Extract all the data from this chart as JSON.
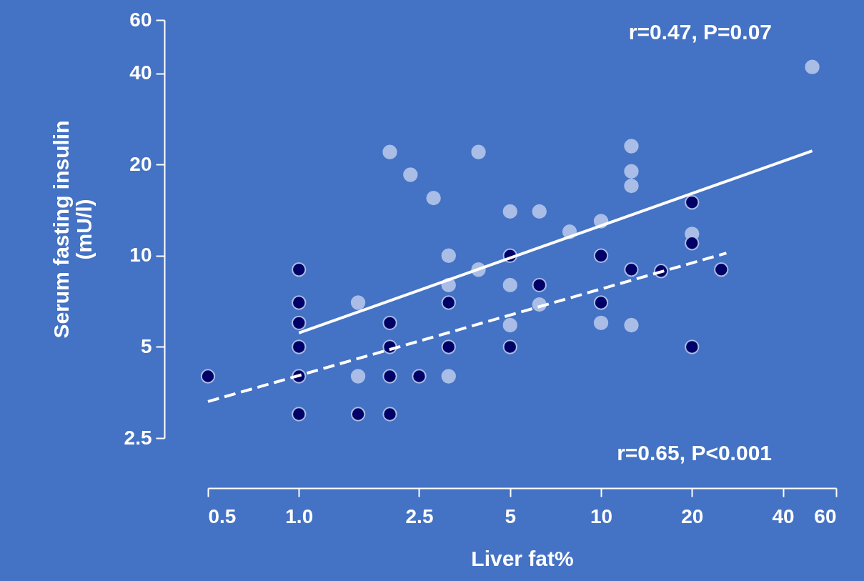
{
  "chart_data": {
    "type": "scatter",
    "xlabel": "Liver fat%",
    "ylabel": "Serum fasting insulin\n(mU/l)",
    "log": "xy",
    "grid": false,
    "xlim": [
      0.5,
      60
    ],
    "xticks": [
      0.5,
      {
        "value": 1,
        "label": "1.0"
      },
      2.5,
      5,
      10,
      20,
      40,
      60
    ],
    "ylim": [
      2.5,
      60
    ],
    "yticks": [
      2.5,
      5,
      10,
      20,
      40,
      60
    ],
    "annotations": [
      "r=0.47, P=0.07",
      "r=0.65, P<0.001"
    ],
    "series": [
      {
        "color": "#a9bde6",
        "marker": "circle",
        "x": [
          1.57,
          1.57,
          2,
          2.34,
          2.79,
          3.13,
          3.13,
          3.13,
          3.93,
          3.93,
          5,
          5,
          5,
          6.25,
          6.25,
          7.87,
          10,
          10,
          12.6,
          12.6,
          12.6,
          12.6,
          20,
          50
        ],
        "values": [
          7,
          4,
          22,
          18.5,
          15.5,
          10,
          8,
          4,
          9,
          22,
          14,
          8,
          5.9,
          14,
          6.9,
          12,
          13,
          6,
          23,
          19,
          17,
          5.9,
          11.8,
          42
        ]
      },
      {
        "color": "#000066",
        "marker": "circle",
        "x": [
          0.5,
          1,
          1,
          1,
          1,
          1,
          1,
          1.57,
          2,
          2,
          2,
          2,
          2.5,
          3.13,
          3.13,
          5,
          5,
          6.25,
          10,
          10,
          12.6,
          15.8,
          20,
          20,
          20,
          25
        ],
        "values": [
          4,
          9,
          7,
          6,
          5,
          4,
          3,
          3,
          6,
          5,
          4,
          3,
          4,
          7,
          5,
          10,
          5,
          8,
          10,
          7,
          9,
          8.9,
          15,
          11,
          5,
          9
        ]
      },
      {
        "type": "line",
        "color": "#ffffff",
        "line_style": "solid",
        "x": [
          1,
          50
        ],
        "values": [
          5.56,
          22.2
        ]
      },
      {
        "type": "line",
        "color": "#ffffff",
        "line_style": "dashed",
        "x": [
          0.5,
          26
        ],
        "values": [
          3.3,
          10.2
        ]
      }
    ]
  }
}
